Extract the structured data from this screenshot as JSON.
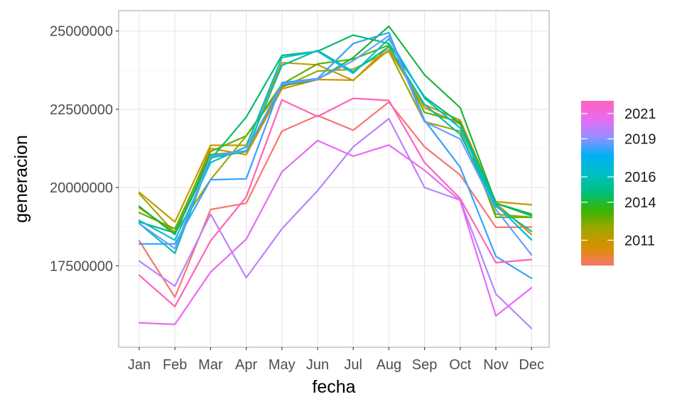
{
  "chart_data": {
    "type": "line",
    "xlabel": "fecha",
    "ylabel": "generacion",
    "categories": [
      "Jan",
      "Feb",
      "Mar",
      "Apr",
      "May",
      "Jun",
      "Jul",
      "Aug",
      "Sep",
      "Oct",
      "Nov",
      "Dec"
    ],
    "y_ticks": [
      17500000,
      20000000,
      22500000,
      25000000
    ],
    "y_tick_labels": [
      "17500000",
      "20000000",
      "22500000",
      "25000000"
    ],
    "ylim": [
      14900000,
      25650000
    ],
    "grid": true,
    "legend": {
      "position": "right",
      "type": "continuous-colorbar",
      "labels": [
        "2021",
        "2019",
        "2016",
        "2014",
        "2011"
      ],
      "label_values": [
        2021,
        2019,
        2016,
        2014,
        2011
      ],
      "range": [
        2009,
        2022
      ],
      "gradient_colors": [
        "#F8766D",
        "#D89000",
        "#A3A500",
        "#39B600",
        "#00BF7D",
        "#00BFC4",
        "#00B0F6",
        "#9590FF",
        "#E76BF3",
        "#FF62BC"
      ]
    },
    "series": [
      {
        "year": 2009,
        "color": "#F8766D",
        "values": [
          18300000,
          16500000,
          19300000,
          19500000,
          21800000,
          22300000,
          21830000,
          22730000,
          21300000,
          20400000,
          18730000,
          18740000
        ]
      },
      {
        "year": 2010,
        "color": "#D89000",
        "values": [
          19350000,
          18580000,
          21250000,
          21050000,
          23150000,
          23450000,
          23430000,
          24400000,
          22550000,
          22020000,
          19500000,
          18500000
        ]
      },
      {
        "year": 2011,
        "color": "#C49A00",
        "values": [
          19850000,
          18900000,
          21350000,
          21350000,
          23990000,
          23920000,
          23420000,
          24500000,
          22650000,
          22150000,
          19550000,
          19450000
        ]
      },
      {
        "year": 2012,
        "color": "#9EA700",
        "values": [
          19800000,
          18550000,
          20250000,
          21650000,
          23200000,
          23720000,
          23780000,
          24350000,
          22100000,
          21800000,
          19150000,
          19050000
        ]
      },
      {
        "year": 2013,
        "color": "#5BB300",
        "values": [
          19200000,
          18680000,
          21150000,
          21650000,
          23300000,
          23950000,
          24100000,
          24550000,
          22400000,
          22100000,
          19050000,
          19050000
        ]
      },
      {
        "year": 2014,
        "color": "#1DB43C",
        "values": [
          19400000,
          18500000,
          21050000,
          21150000,
          23250000,
          23450000,
          24150000,
          25150000,
          23600000,
          22550000,
          19500000,
          19150000
        ]
      },
      {
        "year": 2015,
        "color": "#00BC6C",
        "values": [
          18900000,
          18550000,
          20900000,
          22250000,
          24220000,
          24350000,
          24870000,
          24600000,
          22900000,
          22050000,
          19500000,
          19100000
        ]
      },
      {
        "year": 2016,
        "color": "#00C0A4",
        "values": [
          18850000,
          17900000,
          20950000,
          21150000,
          23900000,
          24380000,
          23700000,
          24500000,
          22650000,
          21700000,
          19400000,
          18600000
        ]
      },
      {
        "year": 2017,
        "color": "#00BCD8",
        "values": [
          18950000,
          18320000,
          20800000,
          21300000,
          24150000,
          24350000,
          23650000,
          24750000,
          22850000,
          21900000,
          19450000,
          18330000
        ]
      },
      {
        "year": 2018,
        "color": "#35A2FF",
        "values": [
          18200000,
          18200000,
          20250000,
          20280000,
          23350000,
          23480000,
          24600000,
          24950000,
          22150000,
          20650000,
          17800000,
          17100000
        ]
      },
      {
        "year": 2019,
        "color": "#6A9CFF",
        "values": [
          18850000,
          18050000,
          21000000,
          21180000,
          23300000,
          23460000,
          24050000,
          24850000,
          22100000,
          21550000,
          19300000,
          17850000
        ]
      },
      {
        "year": 2020,
        "color": "#B983FF",
        "values": [
          17650000,
          16850000,
          19150000,
          17120000,
          18680000,
          19900000,
          21300000,
          22200000,
          20000000,
          19600000,
          16600000,
          15500000
        ]
      },
      {
        "year": 2021,
        "color": "#E76BF3",
        "values": [
          15680000,
          15630000,
          17300000,
          18350000,
          20500000,
          21500000,
          21000000,
          21360000,
          20550000,
          19580000,
          15900000,
          16800000
        ]
      },
      {
        "year": 2022,
        "color": "#FF62BC",
        "values": [
          17200000,
          16200000,
          18300000,
          19700000,
          22800000,
          22270000,
          22850000,
          22780000,
          20800000,
          19650000,
          17600000,
          17700000
        ]
      }
    ]
  }
}
